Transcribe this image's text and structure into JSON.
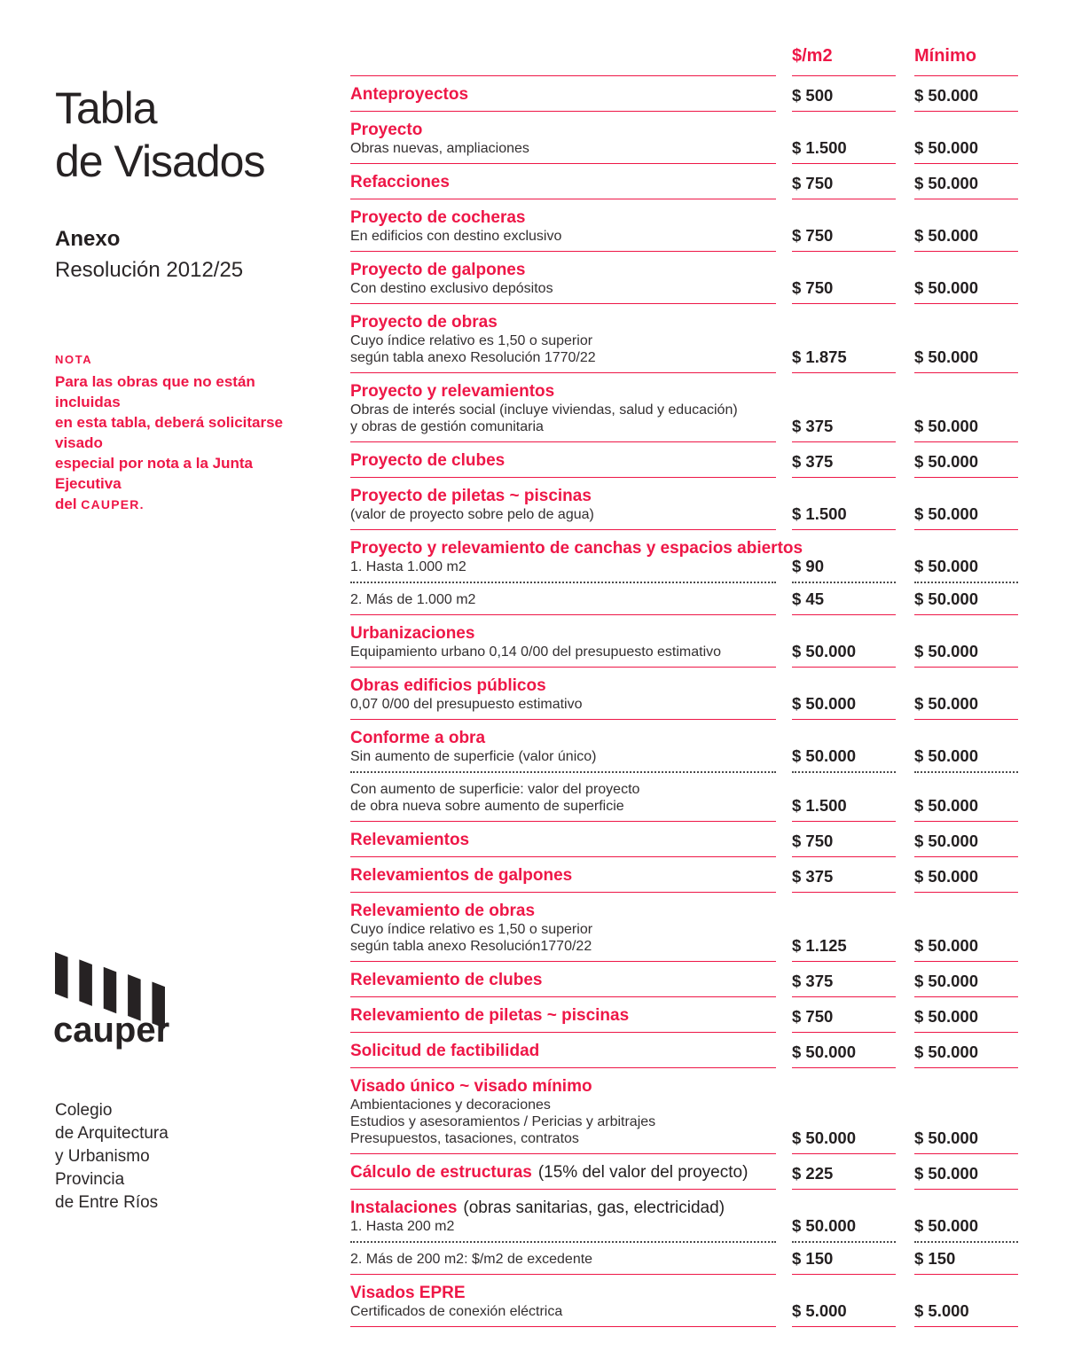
{
  "colors": {
    "accent": "#ee1747",
    "text_dark": "#231f20"
  },
  "sidebar": {
    "title_line1": "Tabla",
    "title_line2": "de Visados",
    "annex_label": "Anexo",
    "resolution_label": "Resolución 2012/25",
    "note": {
      "label": "NOTA",
      "lines": [
        "Para las obras que no están incluidas",
        "en esta tabla, deberá solicitarse visado",
        "especial por nota a la Junta Ejecutiva"
      ],
      "last_line_prefix": "del ",
      "last_line_caps": "CAUPER."
    },
    "logo": {
      "icon": "cauper-bars-icon",
      "wordmark": "cauper",
      "org_lines": [
        "Colegio",
        "de Arquitectura",
        "y Urbanismo",
        "Provincia",
        "de Entre Ríos"
      ]
    }
  },
  "table": {
    "columns": {
      "rate": "$/m2",
      "minimum": "Mínimo"
    },
    "rows": [
      {
        "heading": "Anteproyectos",
        "heading_suffix": "",
        "desc": [],
        "rate": "$ 500",
        "min": "$ 50.000",
        "divider": "solid"
      },
      {
        "heading": "Proyecto",
        "heading_suffix": "",
        "desc": [
          "Obras nuevas, ampliaciones"
        ],
        "rate": "$ 1.500",
        "min": "$ 50.000",
        "divider": "solid"
      },
      {
        "heading": "Refacciones",
        "heading_suffix": "",
        "desc": [],
        "rate": "$ 750",
        "min": "$ 50.000",
        "divider": "solid"
      },
      {
        "heading": "Proyecto de cocheras",
        "heading_suffix": "",
        "desc": [
          "En edificios con destino exclusivo"
        ],
        "rate": "$ 750",
        "min": "$ 50.000",
        "divider": "solid"
      },
      {
        "heading": "Proyecto de galpones",
        "heading_suffix": "",
        "desc": [
          "Con destino exclusivo depósitos"
        ],
        "rate": "$ 750",
        "min": "$ 50.000",
        "divider": "solid"
      },
      {
        "heading": "Proyecto de obras",
        "heading_suffix": "",
        "desc": [
          "Cuyo índice relativo es 1,50 o superior",
          "según tabla anexo Resolución 1770/22"
        ],
        "rate": "$ 1.875",
        "min": "$ 50.000",
        "divider": "solid"
      },
      {
        "heading": "Proyecto y relevamientos",
        "heading_suffix": "",
        "desc": [
          "Obras de interés social (incluye viviendas, salud y educación)",
          "y obras de gestión comunitaria"
        ],
        "rate": "$ 375",
        "min": "$ 50.000",
        "divider": "solid"
      },
      {
        "heading": "Proyecto de clubes",
        "heading_suffix": "",
        "desc": [],
        "rate": "$ 375",
        "min": "$ 50.000",
        "divider": "solid"
      },
      {
        "heading": "Proyecto de piletas ~ piscinas",
        "heading_suffix": "",
        "desc": [
          "(valor de proyecto sobre pelo de agua)"
        ],
        "rate": "$ 1.500",
        "min": "$ 50.000",
        "divider": "solid"
      },
      {
        "heading": "Proyecto y relevamiento de canchas y espacios abiertos",
        "heading_suffix": "",
        "desc": [
          "1. Hasta 1.000 m2"
        ],
        "rate": "$ 90",
        "min": "$ 50.000",
        "divider": "dotted"
      },
      {
        "heading": "",
        "heading_suffix": "",
        "desc": [
          "2. Más de 1.000 m2"
        ],
        "rate": "$ 45",
        "min": "$ 50.000",
        "divider": "solid"
      },
      {
        "heading": "Urbanizaciones",
        "heading_suffix": "",
        "desc": [
          "Equipamiento urbano 0,14 0/00 del presupuesto estimativo"
        ],
        "rate": "$ 50.000",
        "min": "$ 50.000",
        "divider": "solid"
      },
      {
        "heading": "Obras edificios públicos",
        "heading_suffix": "",
        "desc": [
          "0,07 0/00 del presupuesto estimativo"
        ],
        "rate": "$ 50.000",
        "min": "$ 50.000",
        "divider": "solid"
      },
      {
        "heading": "Conforme a obra",
        "heading_suffix": "",
        "desc": [
          "Sin aumento de superficie (valor único)"
        ],
        "rate": "$ 50.000",
        "min": "$ 50.000",
        "divider": "dotted"
      },
      {
        "heading": "",
        "heading_suffix": "",
        "desc": [
          "Con aumento de superficie: valor del proyecto",
          "de obra nueva sobre aumento de superficie"
        ],
        "rate": "$ 1.500",
        "min": "$ 50.000",
        "divider": "solid"
      },
      {
        "heading": "Relevamientos",
        "heading_suffix": "",
        "desc": [],
        "rate": "$ 750",
        "min": "$ 50.000",
        "divider": "solid"
      },
      {
        "heading": "Relevamientos de galpones",
        "heading_suffix": "",
        "desc": [],
        "rate": "$ 375",
        "min": "$ 50.000",
        "divider": "solid"
      },
      {
        "heading": "Relevamiento de obras",
        "heading_suffix": "",
        "desc": [
          "Cuyo índice relativo es 1,50 o superior",
          "según tabla anexo Resolución1770/22"
        ],
        "rate": "$ 1.125",
        "min": "$ 50.000",
        "divider": "solid"
      },
      {
        "heading": "Relevamiento de clubes",
        "heading_suffix": "",
        "desc": [],
        "rate": "$ 375",
        "min": "$ 50.000",
        "divider": "solid"
      },
      {
        "heading": "Relevamiento de piletas ~ piscinas",
        "heading_suffix": "",
        "desc": [],
        "rate": "$ 750",
        "min": "$ 50.000",
        "divider": "solid"
      },
      {
        "heading": "Solicitud de factibilidad",
        "heading_suffix": "",
        "desc": [],
        "rate": "$ 50.000",
        "min": "$ 50.000",
        "divider": "solid"
      },
      {
        "heading": "Visado único ~ visado mínimo",
        "heading_suffix": "",
        "desc": [
          "Ambientaciones y decoraciones",
          "Estudios y asesoramientos / Pericias y arbitrajes",
          "Presupuestos, tasaciones, contratos"
        ],
        "rate": "$ 50.000",
        "min": "$ 50.000",
        "divider": "solid"
      },
      {
        "heading": "Cálculo de estructuras",
        "heading_suffix": "(15% del valor del proyecto)",
        "desc": [],
        "rate": "$ 225",
        "min": "$ 50.000",
        "divider": "solid"
      },
      {
        "heading": "Instalaciones",
        "heading_suffix": "(obras sanitarias, gas, electricidad)",
        "desc": [
          "1. Hasta 200 m2"
        ],
        "rate": "$ 50.000",
        "min": "$ 50.000",
        "divider": "dotted"
      },
      {
        "heading": "",
        "heading_suffix": "",
        "desc": [
          "2. Más de 200 m2: $/m2 de excedente"
        ],
        "rate": "$ 150",
        "min": "$ 150",
        "divider": "solid"
      },
      {
        "heading": "Visados EPRE",
        "heading_suffix": "",
        "desc": [
          "Certificados de conexión eléctrica"
        ],
        "rate": "$ 5.000",
        "min": "$ 5.000",
        "divider": "solid"
      }
    ]
  }
}
